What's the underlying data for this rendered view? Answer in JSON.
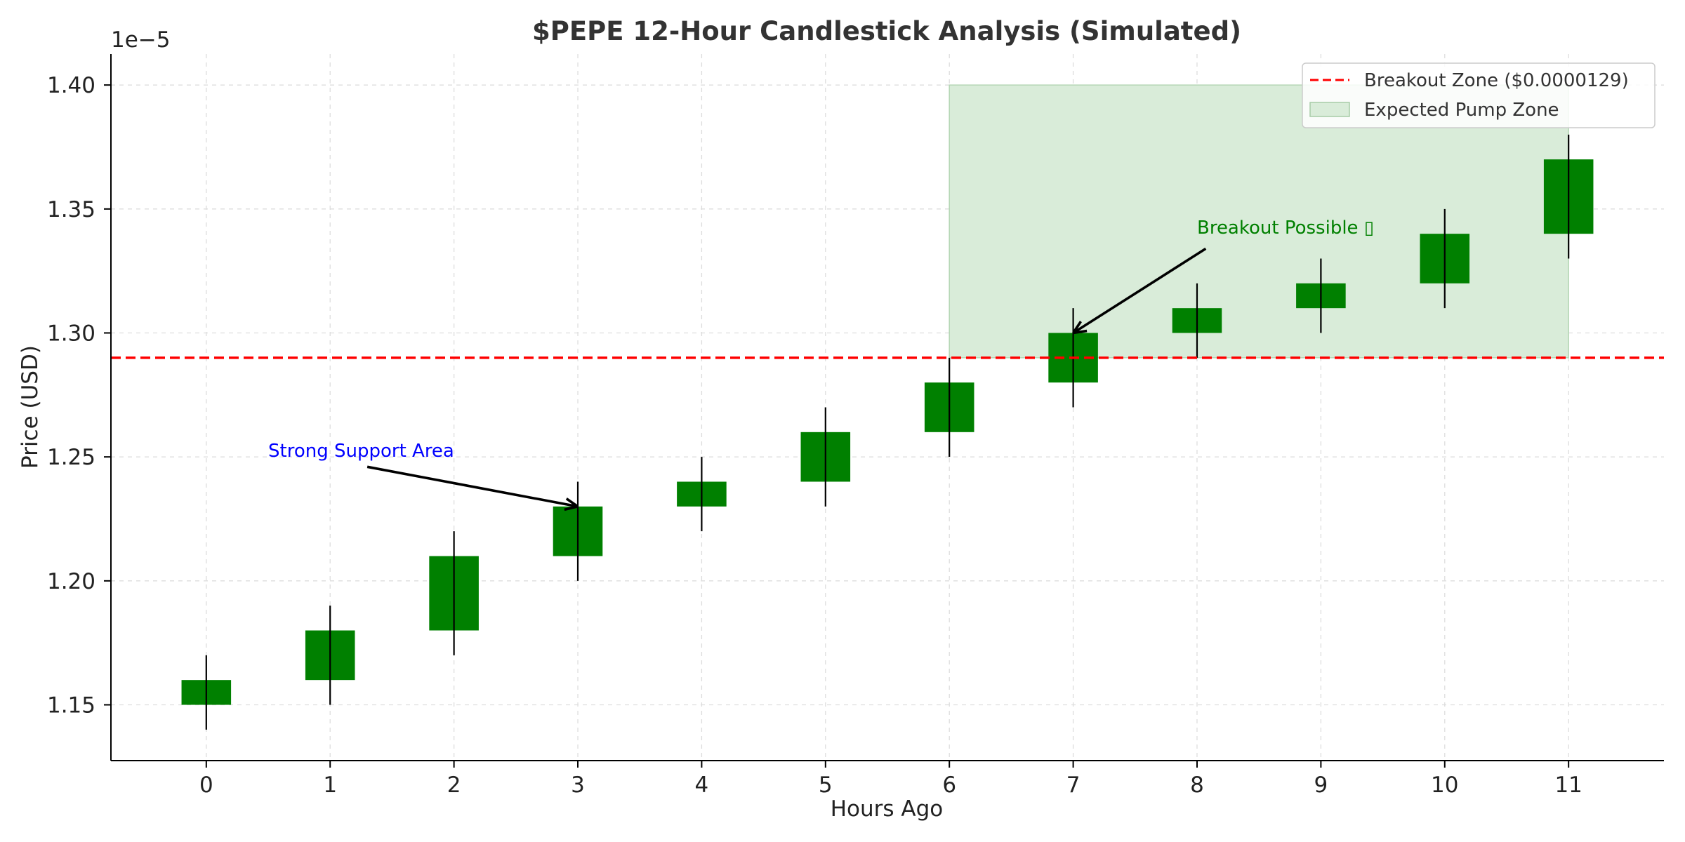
{
  "chart_data": {
    "type": "candlestick",
    "title": "$PEPE 12-Hour Candlestick Analysis (Simulated)",
    "xlabel": "Hours Ago",
    "ylabel": "Price (USD)",
    "offset_text": "1e−5",
    "x_ticks": [
      0,
      1,
      2,
      3,
      4,
      5,
      6,
      7,
      8,
      9,
      10,
      11
    ],
    "y_ticks": [
      "1.15",
      "1.20",
      "1.25",
      "1.30",
      "1.35",
      "1.40"
    ],
    "y_tick_values": [
      1.15,
      1.2,
      1.25,
      1.3,
      1.35,
      1.4
    ],
    "xlim": [
      -0.77,
      11.77
    ],
    "ylim": [
      1.1275,
      1.4125
    ],
    "grid": true,
    "candles": [
      {
        "x": 0,
        "open": 1.15,
        "close": 1.16,
        "low": 1.14,
        "high": 1.17
      },
      {
        "x": 1,
        "open": 1.16,
        "close": 1.18,
        "low": 1.15,
        "high": 1.19
      },
      {
        "x": 2,
        "open": 1.18,
        "close": 1.21,
        "low": 1.17,
        "high": 1.22
      },
      {
        "x": 3,
        "open": 1.21,
        "close": 1.23,
        "low": 1.2,
        "high": 1.24
      },
      {
        "x": 4,
        "open": 1.23,
        "close": 1.24,
        "low": 1.22,
        "high": 1.25
      },
      {
        "x": 5,
        "open": 1.24,
        "close": 1.26,
        "low": 1.23,
        "high": 1.27
      },
      {
        "x": 6,
        "open": 1.26,
        "close": 1.28,
        "low": 1.25,
        "high": 1.29
      },
      {
        "x": 7,
        "open": 1.28,
        "close": 1.3,
        "low": 1.27,
        "high": 1.31
      },
      {
        "x": 8,
        "open": 1.3,
        "close": 1.31,
        "low": 1.29,
        "high": 1.32
      },
      {
        "x": 9,
        "open": 1.31,
        "close": 1.32,
        "low": 1.3,
        "high": 1.33
      },
      {
        "x": 10,
        "open": 1.32,
        "close": 1.34,
        "low": 1.31,
        "high": 1.35
      },
      {
        "x": 11,
        "open": 1.34,
        "close": 1.37,
        "low": 1.33,
        "high": 1.38
      }
    ],
    "candle_color": "#008000",
    "wick_color": "#000000",
    "breakout_line": {
      "label": "Breakout Zone ($0.0000129)",
      "y": 1.29,
      "color": "#ff0000",
      "style": "dashed"
    },
    "pump_zone": {
      "label": "Expected Pump Zone",
      "x_start": 6,
      "x_end": 11,
      "y_start": 1.29,
      "y_end": 1.4,
      "color": "#d9ecd9"
    },
    "annotations": [
      {
        "text": "Strong Support Area",
        "color": "#0000ff",
        "text_x": 0.5,
        "text_y": 1.25,
        "arrow_to_x": 3,
        "arrow_to_y": 1.23
      },
      {
        "text": "Breakout Possible ▯",
        "color": "#008000",
        "text_x": 8.0,
        "text_y": 1.34,
        "arrow_to_x": 7,
        "arrow_to_y": 1.3
      }
    ],
    "legend_position": "top-right"
  }
}
